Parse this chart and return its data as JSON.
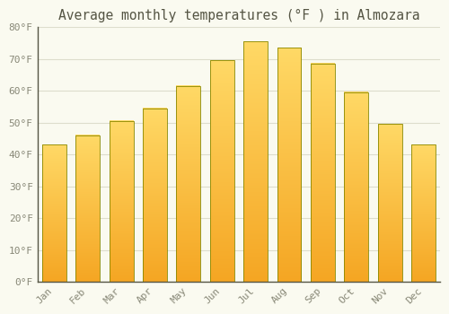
{
  "title": "Average monthly temperatures (°F ) in Almozara",
  "months": [
    "Jan",
    "Feb",
    "Mar",
    "Apr",
    "May",
    "Jun",
    "Jul",
    "Aug",
    "Sep",
    "Oct",
    "Nov",
    "Dec"
  ],
  "values": [
    43.0,
    46.0,
    50.5,
    54.5,
    61.5,
    69.5,
    75.5,
    73.5,
    68.5,
    59.5,
    49.5,
    43.0
  ],
  "bar_color_bottom": "#F5A623",
  "bar_color_top": "#FFD966",
  "bar_edge_color": "#888800",
  "background_color": "#FAFAF0",
  "grid_color": "#DDDDCC",
  "text_color": "#888877",
  "ylim": [
    0,
    80
  ],
  "yticks": [
    0,
    10,
    20,
    30,
    40,
    50,
    60,
    70,
    80
  ],
  "ytick_labels": [
    "0°F",
    "10°F",
    "20°F",
    "30°F",
    "40°F",
    "50°F",
    "60°F",
    "70°F",
    "80°F"
  ],
  "title_fontsize": 10.5,
  "tick_fontsize": 8,
  "title_font": "monospace",
  "tick_font": "monospace",
  "bar_width": 0.72
}
